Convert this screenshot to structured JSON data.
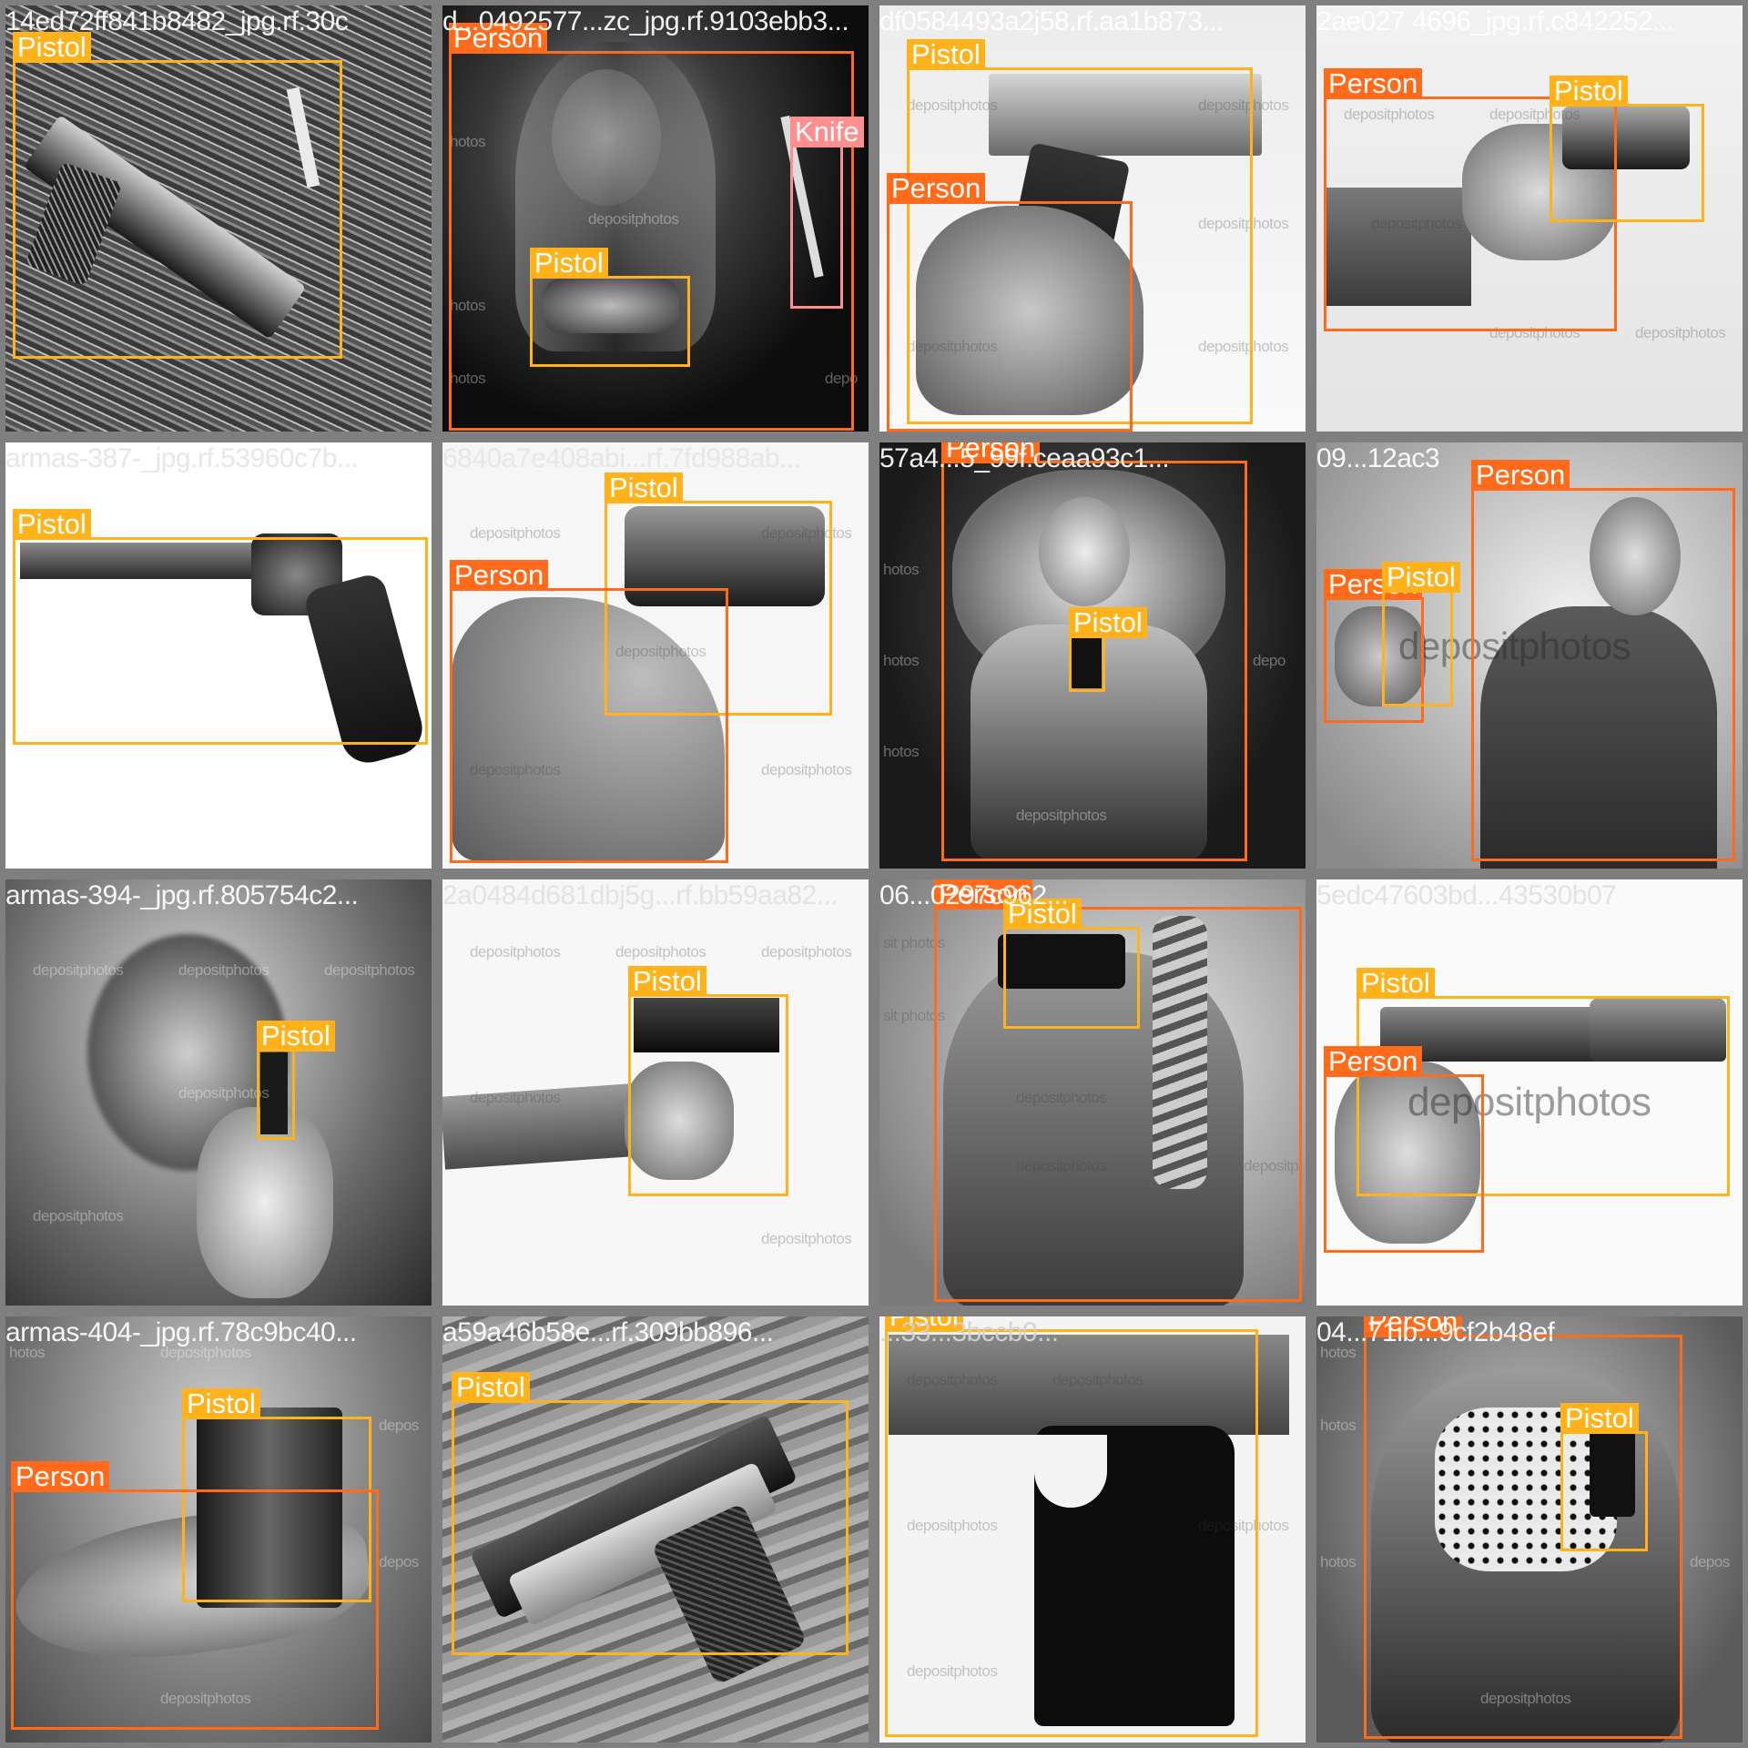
{
  "colors": {
    "pistol": "#ffb21a",
    "person": "#ff6b1a",
    "knife": "#ff8f8f",
    "tile_border": "#7f7f7f"
  },
  "tiles": [
    {
      "filename": "14ed72ff841b8482_jpg.rf.30c",
      "watermarks": [],
      "boxes": [
        {
          "label": "Pistol"
        }
      ]
    },
    {
      "filename": "d...0492577...zc_jpg.rf.9103ebb3...",
      "watermarks": [
        "depositphotos",
        "hotos",
        "hotos",
        "hotos",
        "depo"
      ],
      "boxes": [
        {
          "label": "Person"
        },
        {
          "label": "Knife"
        },
        {
          "label": "Pistol"
        }
      ]
    },
    {
      "filename": "df0584493a2j58.rf.aa1b873...",
      "watermarks": [
        "depositphotos",
        "depositphotos",
        "depositphotos",
        "depositphotos",
        "depositphotos"
      ],
      "boxes": [
        {
          "label": "Pistol"
        },
        {
          "label": "Person"
        }
      ]
    },
    {
      "filename": "2ae027 4696_jpg.rf.c842252...",
      "watermarks": [
        "depositphotos",
        "depositphotos",
        "depositphotos",
        "depositphotos",
        "depositphotos"
      ],
      "boxes": [
        {
          "label": "Person"
        },
        {
          "label": "Pistol"
        }
      ]
    },
    {
      "filename": "armas-387-_jpg.rf.53960c7b...",
      "watermarks": [],
      "boxes": [
        {
          "label": "Pistol"
        }
      ]
    },
    {
      "filename": "6840a7e408abi...rf.7fd988ab...",
      "watermarks": [
        "depositphotos",
        "depositphotos",
        "depositphotos",
        "depositphotos",
        "depositphotos"
      ],
      "boxes": [
        {
          "label": "Pistol"
        },
        {
          "label": "Person"
        }
      ]
    },
    {
      "filename": "57a4...5_99f.ceaa93c1...",
      "watermarks": [
        "hotos",
        "hotos",
        "hotos",
        "depositphotos",
        "depo"
      ],
      "boxes": [
        {
          "label": "Person"
        },
        {
          "label": "Pistol"
        }
      ]
    },
    {
      "filename": "09...12ac3",
      "watermarks": [
        "depositphotos"
      ],
      "boxes": [
        {
          "label": "Person"
        },
        {
          "label": "Person"
        },
        {
          "label": "Pistol"
        }
      ]
    },
    {
      "filename": "armas-394-_jpg.rf.805754c2...",
      "watermarks": [
        "depositphotos",
        "depositphotos",
        "depositphotos",
        "depositphotos",
        "depositphotos"
      ],
      "boxes": [
        {
          "label": "Pistol"
        }
      ]
    },
    {
      "filename": "2a0484d681dbj5g...rf.bb59aa82...",
      "watermarks": [
        "depositphotos",
        "depositphotos",
        "depositphotos",
        "depositphotos",
        "depositphotos"
      ],
      "boxes": [
        {
          "label": "Pistol"
        }
      ]
    },
    {
      "filename": "06...0297c962...",
      "watermarks": [
        "sit photos",
        "sit photos",
        "depositphotos",
        "depositphotos",
        "depositp"
      ],
      "boxes": [
        {
          "label": "Person"
        },
        {
          "label": "Pistol"
        }
      ]
    },
    {
      "filename": "5edc47603bd...43530b07",
      "watermarks": [
        "depositphotos"
      ],
      "boxes": [
        {
          "label": "Pistol"
        },
        {
          "label": "Person"
        }
      ]
    },
    {
      "filename": "armas-404-_jpg.rf.78c9bc40...",
      "watermarks": [
        "hotos",
        "depositphotos",
        "depositphotos",
        "depos",
        "depos"
      ],
      "boxes": [
        {
          "label": "Pistol"
        },
        {
          "label": "Person"
        }
      ]
    },
    {
      "filename": "a59a46b58e...rf.309bb896...",
      "watermarks": [],
      "boxes": [
        {
          "label": "Pistol"
        }
      ]
    },
    {
      "filename": "...33...3bccb0...",
      "watermarks": [
        "depositphotos",
        "depositphotos",
        "depositphotos",
        "depositphotos",
        "depositphotos"
      ],
      "boxes": [
        {
          "label": "Pistol"
        }
      ]
    },
    {
      "filename": "04...71ib...9cf2b48ef",
      "watermarks": [
        "hotos",
        "hotos",
        "hotos",
        "depositphotos",
        "depos"
      ],
      "boxes": [
        {
          "label": "Person"
        },
        {
          "label": "Pistol"
        }
      ]
    }
  ]
}
